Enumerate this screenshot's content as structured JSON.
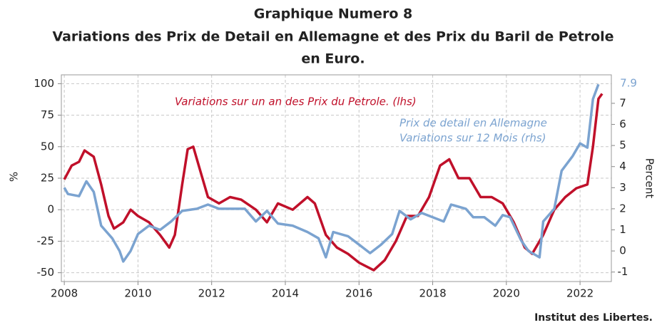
{
  "chart_data": {
    "type": "line",
    "title": [
      "Graphique Numero 8",
      "Variations des Prix de Detail en Allemagne et des Prix du Baril de Petrole",
      "en Euro."
    ],
    "ylabel": "%",
    "y2label": "Percent",
    "source": "Institut des Libertes.",
    "xlim": [
      2007.92,
      2022.85
    ],
    "xticks": [
      2008,
      2010,
      2012,
      2014,
      2016,
      2018,
      2020,
      2022
    ],
    "ylim": [
      -57,
      107
    ],
    "yticks": [
      -50,
      -25,
      0,
      25,
      50,
      75,
      100
    ],
    "y2lim": [
      -1.45,
      8.35
    ],
    "y2ticks": [
      -1,
      0,
      1,
      2,
      3,
      4,
      5,
      6,
      7
    ],
    "grid": true,
    "annotations": [
      {
        "text": "Variations sur un an des Prix du Petrole. (lhs)",
        "color": "#c0102a"
      },
      {
        "text": "Prix de detail en Allemagne",
        "color": "#7ba3d0"
      },
      {
        "text": "Variations sur 12 Mois (rhs)",
        "color": "#7ba3d0"
      }
    ],
    "series": [
      {
        "name": "Variations sur un an des Prix du Petrole. (lhs)",
        "color": "#c0102a",
        "axis": "y",
        "x": [
          2008.0,
          2008.2,
          2008.4,
          2008.55,
          2008.8,
          2009.0,
          2009.2,
          2009.35,
          2009.6,
          2009.8,
          2010.0,
          2010.3,
          2010.6,
          2010.85,
          2011.0,
          2011.2,
          2011.35,
          2011.5,
          2011.7,
          2011.9,
          2012.2,
          2012.5,
          2012.8,
          2013.2,
          2013.5,
          2013.8,
          2014.2,
          2014.6,
          2014.8,
          2015.1,
          2015.4,
          2015.7,
          2016.0,
          2016.4,
          2016.7,
          2017.0,
          2017.3,
          2017.6,
          2017.9,
          2018.2,
          2018.45,
          2018.7,
          2019.0,
          2019.3,
          2019.6,
          2019.9,
          2020.2,
          2020.5,
          2020.7,
          2021.0,
          2021.3,
          2021.6,
          2021.9,
          2022.2,
          2022.35,
          2022.5,
          2022.6
        ],
        "values": [
          24,
          35,
          38,
          47,
          42,
          20,
          -5,
          -15,
          -10,
          0,
          -5,
          -10,
          -20,
          -30,
          -20,
          20,
          48,
          50,
          30,
          10,
          5,
          10,
          8,
          0,
          -10,
          5,
          0,
          10,
          5,
          -20,
          -30,
          -35,
          -42,
          -48,
          -40,
          -25,
          -5,
          -5,
          10,
          35,
          40,
          25,
          25,
          10,
          10,
          5,
          -10,
          -30,
          -35,
          -20,
          0,
          10,
          17,
          20,
          50,
          88,
          92
        ]
      },
      {
        "name": "Prix de detail en Allemagne Variations sur 12 Mois (rhs)",
        "color": "#7ba3d0",
        "axis": "y2",
        "x": [
          2008.0,
          2008.1,
          2008.4,
          2008.6,
          2008.8,
          2009.0,
          2009.3,
          2009.5,
          2009.6,
          2009.8,
          2010.0,
          2010.3,
          2010.6,
          2010.9,
          2011.2,
          2011.6,
          2011.9,
          2012.2,
          2012.6,
          2012.9,
          2013.2,
          2013.5,
          2013.8,
          2014.2,
          2014.6,
          2014.9,
          2015.1,
          2015.3,
          2015.7,
          2016.0,
          2016.3,
          2016.6,
          2016.9,
          2017.1,
          2017.4,
          2017.7,
          2018.0,
          2018.3,
          2018.5,
          2018.9,
          2019.1,
          2019.4,
          2019.7,
          2019.9,
          2020.1,
          2020.4,
          2020.6,
          2020.9,
          2021.0,
          2021.3,
          2021.5,
          2021.8,
          2022.0,
          2022.2,
          2022.35,
          2022.5
        ],
        "values": [
          3.0,
          2.7,
          2.6,
          3.3,
          2.8,
          1.2,
          0.6,
          0.0,
          -0.5,
          0.0,
          0.8,
          1.2,
          1.0,
          1.4,
          1.9,
          2.0,
          2.2,
          2.0,
          2.0,
          2.0,
          1.4,
          1.9,
          1.3,
          1.2,
          0.9,
          0.6,
          -0.3,
          0.9,
          0.7,
          0.3,
          -0.1,
          0.3,
          0.8,
          1.9,
          1.5,
          1.8,
          1.6,
          1.4,
          2.2,
          2.0,
          1.6,
          1.6,
          1.2,
          1.7,
          1.6,
          0.5,
          0.0,
          -0.3,
          1.4,
          2.0,
          3.8,
          4.5,
          5.1,
          4.9,
          7.2,
          7.9
        ],
        "value_labels": [
          null,
          null,
          null,
          null,
          null,
          null,
          null,
          null,
          null,
          null,
          null,
          null,
          null,
          null,
          null,
          null,
          null,
          null,
          null,
          null,
          null,
          null,
          null,
          null,
          null,
          null,
          null,
          null,
          null,
          null,
          null,
          null,
          null,
          null,
          null,
          null,
          null,
          null,
          null,
          null,
          null,
          null,
          null,
          null,
          null,
          null,
          null,
          null,
          null,
          null,
          null,
          null,
          null,
          null,
          null,
          "7.9"
        ]
      }
    ]
  }
}
